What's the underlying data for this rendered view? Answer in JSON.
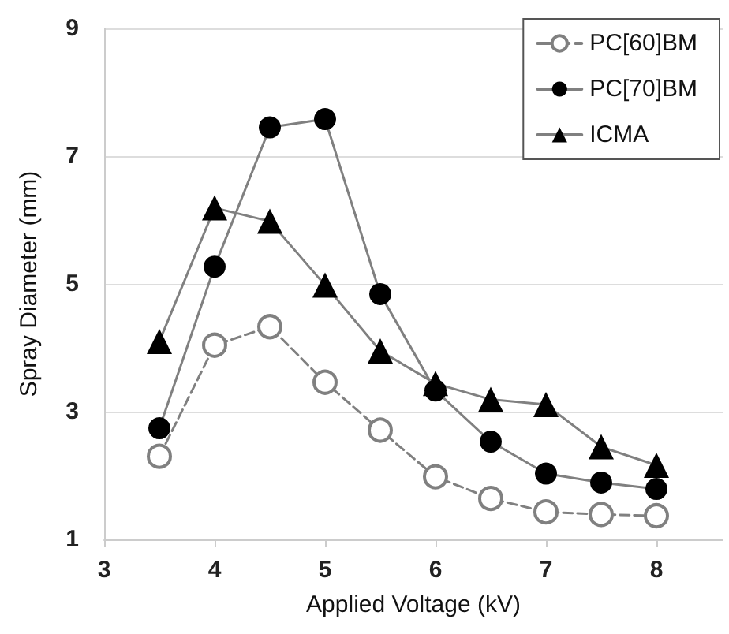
{
  "chart_data": {
    "type": "line",
    "xlabel": "Applied Voltage (kV)",
    "ylabel": "Spray Diameter (mm)",
    "x": [
      3.5,
      4,
      4.5,
      5,
      5.5,
      6,
      6.5,
      7,
      7.5,
      8
    ],
    "series": [
      {
        "name": "PC[60]BM",
        "color": "#808080",
        "marker": "circle",
        "line_style": "dashed",
        "values": [
          2.3,
          4.04,
          4.33,
          3.46,
          2.71,
          1.98,
          1.64,
          1.43,
          1.39,
          1.37
        ]
      },
      {
        "name": "PC[70]BM",
        "color": "#000000",
        "marker": "circle",
        "line_style": "solid",
        "values": [
          2.74,
          5.27,
          7.45,
          7.58,
          4.84,
          3.33,
          2.53,
          2.03,
          1.89,
          1.79
        ]
      },
      {
        "name": "ICMA",
        "color": "#000000",
        "marker": "triangle",
        "line_style": "solid",
        "values": [
          4.1,
          6.19,
          5.98,
          4.98,
          3.95,
          3.44,
          3.19,
          3.11,
          2.45,
          2.16
        ]
      }
    ],
    "xlim": [
      3,
      8.6
    ],
    "xticks": [
      3,
      4,
      5,
      6,
      7,
      8
    ],
    "ylim": [
      1,
      9
    ],
    "yticks": [
      1,
      3,
      5,
      7,
      9
    ],
    "grid": "y",
    "legend": "top right"
  }
}
